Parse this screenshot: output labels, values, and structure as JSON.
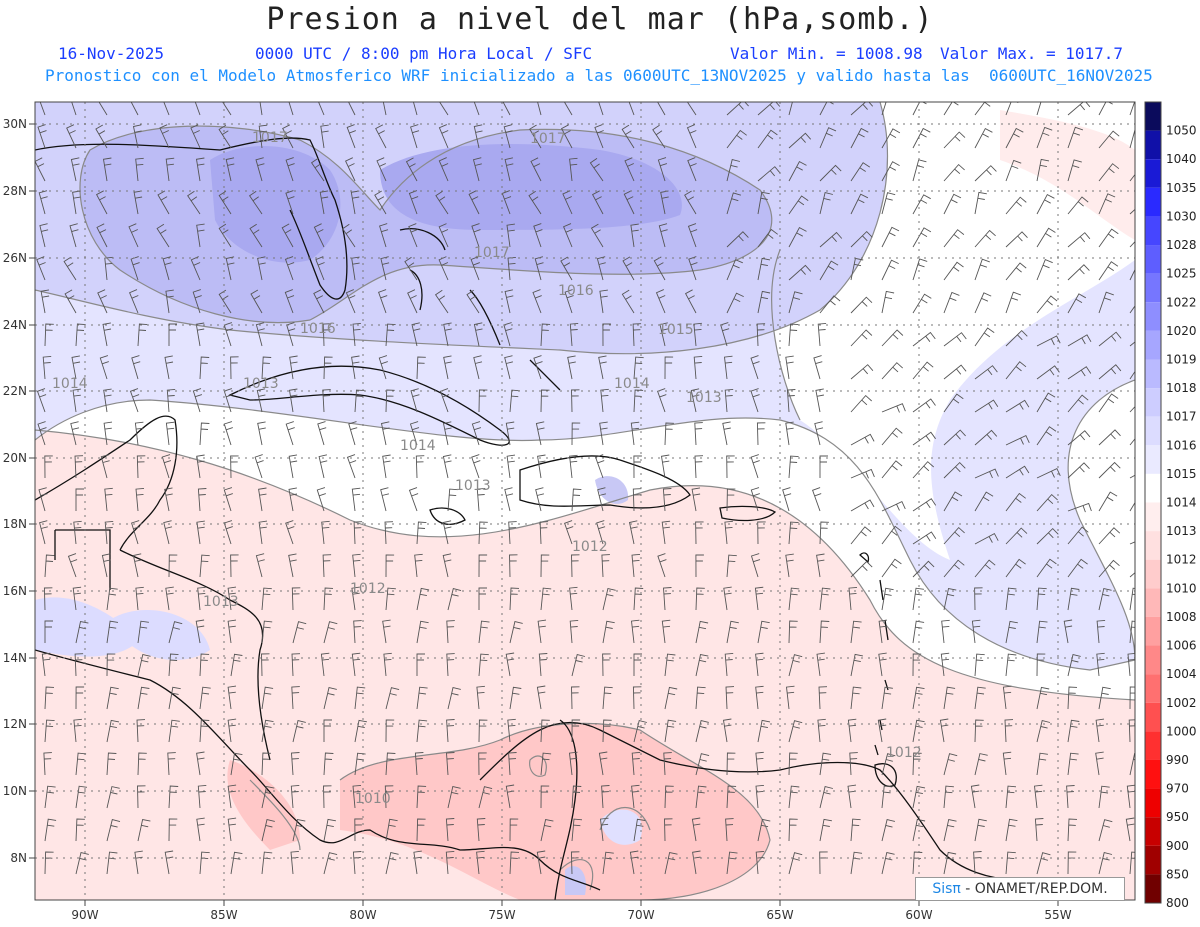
{
  "header": {
    "title": "Presion a nivel del mar (hPa,somb.)",
    "date": "16-Nov-2025",
    "time": "0000 UTC / 8:00 pm Hora Local / SFC",
    "min": "Valor Min. = 1008.98",
    "max": "Valor Max. = 1017.7",
    "forecast": "Pronostico con el Modelo Atmosferico WRF inicializado a las 0600UTC_13NOV2025 y valido hasta las  0600UTC_16NOV2025"
  },
  "map": {
    "lon_labels": [
      "90W",
      "85W",
      "80W",
      "75W",
      "70W",
      "65W",
      "60W",
      "55W"
    ],
    "lat_labels": [
      "30N",
      "28N",
      "26N",
      "24N",
      "22N",
      "20N",
      "18N",
      "16N",
      "14N",
      "12N",
      "10N",
      "8N"
    ],
    "contour_labels": [
      "1017",
      "1017",
      "1017",
      "1016",
      "1016",
      "1015",
      "1014",
      "1014",
      "1014",
      "1013",
      "1013",
      "1013",
      "1013",
      "1012",
      "1012",
      "1012",
      "1010"
    ]
  },
  "colorbar": {
    "levels": [
      "1050",
      "1040",
      "1035",
      "1030",
      "1028",
      "1025",
      "1022",
      "1020",
      "1019",
      "1018",
      "1017",
      "1016",
      "1015",
      "1014",
      "1013",
      "1012",
      "1010",
      "1008",
      "1006",
      "1004",
      "1002",
      "1000",
      "990",
      "970",
      "950",
      "900",
      "850",
      "800"
    ],
    "colors": [
      "#0b0b5c",
      "#1010a8",
      "#1a1ad6",
      "#2a2aff",
      "#4646ff",
      "#5e5eff",
      "#7676ff",
      "#8e8eff",
      "#a6a6ff",
      "#babaff",
      "#cdcdff",
      "#dcdcff",
      "#eaeaff",
      "#ffffff",
      "#ffeeee",
      "#ffe0e0",
      "#ffcccc",
      "#ffb8b8",
      "#ffa0a0",
      "#ff8888",
      "#ff7070",
      "#ff5050",
      "#ff3030",
      "#ff1010",
      "#ee0000",
      "#c80000",
      "#a00000",
      "#700000"
    ]
  },
  "credit": {
    "brand": "Sisπ",
    "org": " - ONAMET/REP.DOM."
  }
}
